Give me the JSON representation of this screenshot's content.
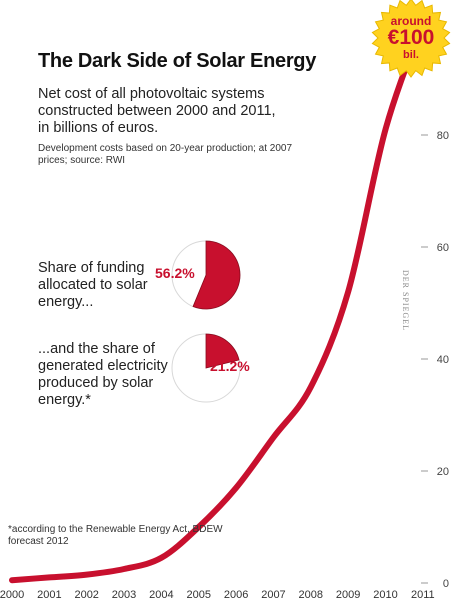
{
  "title": "The Dark Side of Solar Energy",
  "subtitle": "Net cost of all photovoltaic systems constructed between 2000 and 2011, in billions of euros.",
  "note": "Development costs based on 20-year production; at 2007 prices; source: RWI",
  "share_funding": {
    "label": "Share of funding allocated to solar energy...",
    "percent_text": "56.2%",
    "value": 56.2
  },
  "share_electricity": {
    "label": "...and the share of generated electricity produced by solar energy.*",
    "percent_text": "21.2%",
    "value": 21.2
  },
  "footnote": "*according to the Renewable Energy Act, BDEW forecast 2012",
  "credit": "DER SPIEGEL",
  "burst": {
    "line1": "around",
    "line2": "€100",
    "line3": "bil."
  },
  "colors": {
    "line": "#c8102e",
    "pie": "#c8102e",
    "burst": "#ffd21f"
  },
  "chart_data": {
    "type": "line",
    "x": [
      "2000",
      "2001",
      "2002",
      "2003",
      "2004",
      "2005",
      "2006",
      "2007",
      "2008",
      "2009",
      "2010",
      "2011"
    ],
    "y": [
      0.5,
      1,
      1.5,
      2.5,
      4.5,
      10,
      17,
      26,
      35,
      52,
      81,
      100
    ],
    "yticks": [
      0,
      20,
      40,
      60,
      80
    ],
    "ylim": [
      0,
      100
    ],
    "grid": false
  }
}
